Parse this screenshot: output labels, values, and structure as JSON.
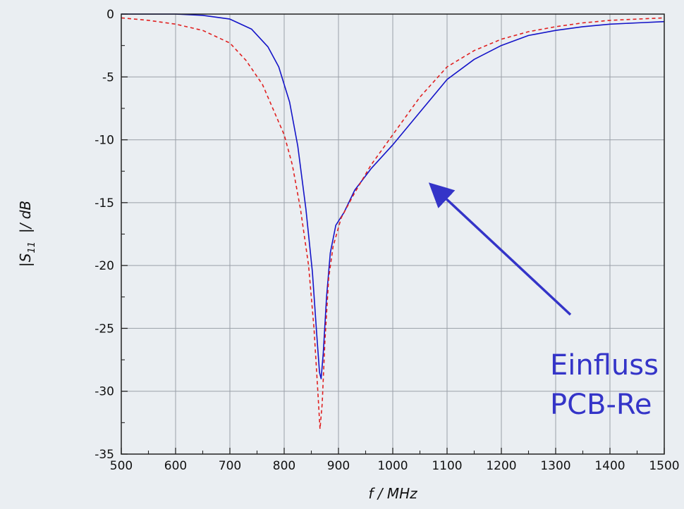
{
  "chart_data": {
    "type": "line",
    "xlabel": "f / MHz",
    "ylabel_parts": {
      "pre": "|S",
      "sub": "11",
      "post": "|/ dB"
    },
    "xlim": [
      500,
      1500
    ],
    "ylim": [
      -35,
      0
    ],
    "x_ticks": [
      500,
      600,
      700,
      800,
      900,
      1000,
      1100,
      1200,
      1300,
      1400,
      1500
    ],
    "y_ticks": [
      0,
      -5,
      -10,
      -15,
      -20,
      -25,
      -30,
      -35
    ],
    "grid": true,
    "series": [
      {
        "color": "#1414c8",
        "style": "solid",
        "points": [
          [
            500,
            0
          ],
          [
            600,
            0
          ],
          [
            650,
            -0.1
          ],
          [
            700,
            -0.4
          ],
          [
            740,
            -1.2
          ],
          [
            770,
            -2.6
          ],
          [
            790,
            -4.2
          ],
          [
            810,
            -7.0
          ],
          [
            825,
            -10.5
          ],
          [
            840,
            -15.5
          ],
          [
            852,
            -20.5
          ],
          [
            860,
            -25.5
          ],
          [
            865,
            -28.5
          ],
          [
            868,
            -29.0
          ],
          [
            872,
            -27.0
          ],
          [
            878,
            -22.5
          ],
          [
            885,
            -19.0
          ],
          [
            895,
            -16.8
          ],
          [
            910,
            -15.8
          ],
          [
            930,
            -14.0
          ],
          [
            960,
            -12.3
          ],
          [
            1000,
            -10.4
          ],
          [
            1050,
            -7.8
          ],
          [
            1100,
            -5.2
          ],
          [
            1150,
            -3.6
          ],
          [
            1200,
            -2.5
          ],
          [
            1250,
            -1.7
          ],
          [
            1300,
            -1.3
          ],
          [
            1350,
            -1.0
          ],
          [
            1400,
            -0.8
          ],
          [
            1450,
            -0.7
          ],
          [
            1500,
            -0.6
          ]
        ]
      },
      {
        "color": "#e02020",
        "style": "dashed",
        "points": [
          [
            500,
            -0.3
          ],
          [
            550,
            -0.5
          ],
          [
            600,
            -0.8
          ],
          [
            650,
            -1.3
          ],
          [
            700,
            -2.3
          ],
          [
            730,
            -3.7
          ],
          [
            760,
            -5.6
          ],
          [
            780,
            -7.6
          ],
          [
            800,
            -9.6
          ],
          [
            815,
            -12.0
          ],
          [
            830,
            -15.5
          ],
          [
            845,
            -20.0
          ],
          [
            855,
            -25.0
          ],
          [
            862,
            -30.0
          ],
          [
            866,
            -33.0
          ],
          [
            870,
            -31.0
          ],
          [
            875,
            -26.0
          ],
          [
            882,
            -21.0
          ],
          [
            890,
            -18.5
          ],
          [
            905,
            -16.2
          ],
          [
            930,
            -14.2
          ],
          [
            960,
            -12.0
          ],
          [
            1000,
            -9.6
          ],
          [
            1050,
            -6.6
          ],
          [
            1100,
            -4.2
          ],
          [
            1150,
            -2.9
          ],
          [
            1200,
            -2.0
          ],
          [
            1250,
            -1.4
          ],
          [
            1300,
            -1.0
          ],
          [
            1350,
            -0.7
          ],
          [
            1400,
            -0.5
          ],
          [
            1450,
            -0.4
          ],
          [
            1500,
            -0.3
          ]
        ]
      }
    ],
    "annotation": {
      "lines": [
        "Einfluss",
        "PCB-Re"
      ],
      "arrow_color": "#3434c8"
    }
  }
}
